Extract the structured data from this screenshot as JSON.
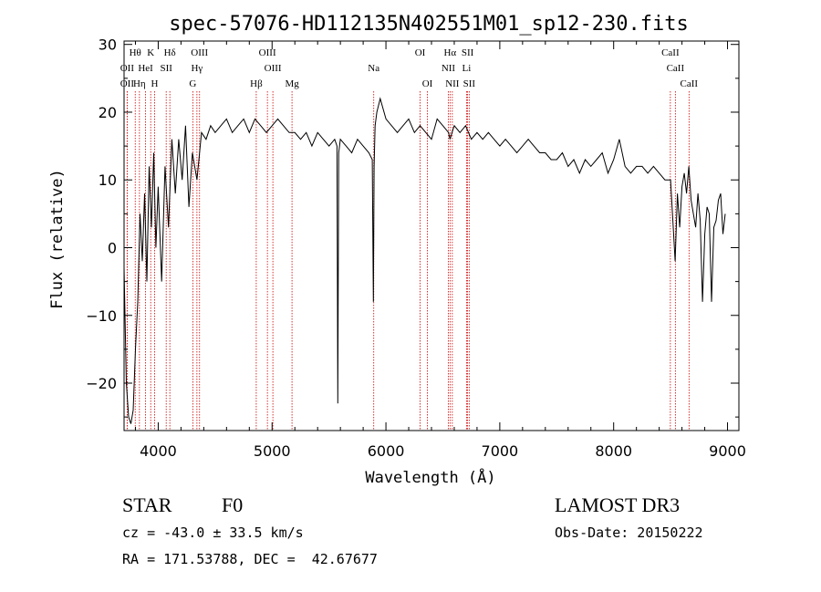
{
  "chart_data": {
    "type": "line",
    "title": "spec-57076-HD112135N402551M01_sp12-230.fits",
    "xlabel": "Wavelength (Å)",
    "ylabel": "Flux (relative)",
    "xlim": [
      3700,
      9100
    ],
    "ylim": [
      -27,
      30.5
    ],
    "xticks": [
      4000,
      5000,
      6000,
      7000,
      8000,
      9000
    ],
    "yticks": [
      -20,
      -10,
      0,
      10,
      20,
      30
    ],
    "series": [
      {
        "x": [
          3700,
          3720,
          3740,
          3760,
          3780,
          3800,
          3820,
          3840,
          3860,
          3880,
          3900,
          3920,
          3940,
          3960,
          3980,
          4000,
          4030,
          4060,
          4090,
          4120,
          4150,
          4180,
          4210,
          4240,
          4270,
          4300,
          4340,
          4380,
          4420,
          4460,
          4500,
          4550,
          4600,
          4650,
          4700,
          4750,
          4800,
          4850,
          4900,
          4950,
          5000,
          5050,
          5100,
          5150,
          5200,
          5250,
          5300,
          5350,
          5400,
          5450,
          5500,
          5550,
          5570,
          5577,
          5585,
          5600,
          5650,
          5700,
          5750,
          5800,
          5850,
          5880,
          5890,
          5896,
          5905,
          5920,
          5950,
          6000,
          6050,
          6100,
          6150,
          6200,
          6250,
          6300,
          6350,
          6400,
          6450,
          6500,
          6550,
          6563,
          6580,
          6600,
          6650,
          6700,
          6750,
          6800,
          6850,
          6900,
          6950,
          7000,
          7050,
          7100,
          7150,
          7200,
          7250,
          7300,
          7350,
          7400,
          7450,
          7500,
          7550,
          7600,
          7650,
          7700,
          7750,
          7800,
          7850,
          7900,
          7950,
          8000,
          8050,
          8100,
          8150,
          8200,
          8250,
          8300,
          8350,
          8400,
          8450,
          8500,
          8520,
          8540,
          8560,
          8580,
          8600,
          8620,
          8640,
          8660,
          8680,
          8700,
          8720,
          8740,
          8760,
          8780,
          8800,
          8820,
          8840,
          8860,
          8880,
          8900,
          8920,
          8940,
          8960,
          8980
        ],
        "y": [
          -3,
          -20,
          -25,
          -26,
          -24,
          -15,
          -8,
          5,
          -2,
          8,
          -5,
          12,
          3,
          14,
          0,
          9,
          -5,
          12,
          3,
          16,
          8,
          16,
          10,
          18,
          6,
          14,
          10,
          17,
          16,
          18,
          17,
          18,
          19,
          17,
          18,
          19,
          17,
          19,
          18,
          17,
          18,
          19,
          18,
          17,
          17,
          16,
          17,
          15,
          17,
          16,
          15,
          16,
          15,
          -23,
          14,
          16,
          15,
          14,
          16,
          15,
          14,
          13,
          -8,
          12,
          18,
          20,
          22,
          19,
          18,
          17,
          18,
          19,
          17,
          18,
          17,
          16,
          19,
          18,
          17,
          16,
          17,
          18,
          17,
          18,
          16,
          17,
          16,
          17,
          16,
          15,
          16,
          15,
          14,
          15,
          16,
          15,
          14,
          14,
          13,
          13,
          14,
          12,
          13,
          11,
          13,
          12,
          13,
          14,
          11,
          13,
          16,
          12,
          11,
          12,
          12,
          11,
          12,
          11,
          10,
          10,
          4,
          -2,
          8,
          3,
          9,
          11,
          8,
          12,
          7,
          5,
          3,
          8,
          4,
          -8,
          2,
          6,
          5,
          -8,
          3,
          4,
          7,
          8,
          2,
          5
        ]
      }
    ],
    "lines": [
      {
        "label": "Hθ",
        "wl": 3798,
        "row": 0
      },
      {
        "label": "K",
        "wl": 3934,
        "row": 0
      },
      {
        "label": "Hδ",
        "wl": 4102,
        "row": 0
      },
      {
        "label": "OIII",
        "wl": 4363,
        "row": 0
      },
      {
        "label": "OIII",
        "wl": 4959,
        "row": 0
      },
      {
        "label": "OI",
        "wl": 6300,
        "row": 0
      },
      {
        "label": "Hα",
        "wl": 6563,
        "row": 0
      },
      {
        "label": "SII",
        "wl": 6717,
        "row": 0
      },
      {
        "label": "CaII",
        "wl": 8498,
        "row": 0
      },
      {
        "label": "OII",
        "wl": 3727,
        "row": 1
      },
      {
        "label": "HeI",
        "wl": 3889,
        "row": 1
      },
      {
        "label": "SII",
        "wl": 4070,
        "row": 1
      },
      {
        "label": "Hγ",
        "wl": 4340,
        "row": 1
      },
      {
        "label": "OIII",
        "wl": 5007,
        "row": 1
      },
      {
        "label": "Na",
        "wl": 5893,
        "row": 1
      },
      {
        "label": "NII",
        "wl": 6548,
        "row": 1
      },
      {
        "label": "Li",
        "wl": 6708,
        "row": 1
      },
      {
        "label": "CaII",
        "wl": 8542,
        "row": 1
      },
      {
        "label": "OII",
        "wl": 3727,
        "row": 2
      },
      {
        "label": "Hη",
        "wl": 3835,
        "row": 2
      },
      {
        "label": "H",
        "wl": 3968,
        "row": 2
      },
      {
        "label": "G",
        "wl": 4304,
        "row": 2
      },
      {
        "label": "Hβ",
        "wl": 4861,
        "row": 2
      },
      {
        "label": "Mg",
        "wl": 5175,
        "row": 2
      },
      {
        "label": "OI",
        "wl": 6364,
        "row": 2
      },
      {
        "label": "NII",
        "wl": 6583,
        "row": 2
      },
      {
        "label": "SII",
        "wl": 6731,
        "row": 2
      },
      {
        "label": "CaII",
        "wl": 8662,
        "row": 2
      }
    ]
  },
  "info": {
    "class": "STAR",
    "subclass": "F0",
    "survey": "LAMOST DR3",
    "cz": "cz = -43.0 ± 33.5 km/s",
    "obsdate": "Obs-Date: 20150222",
    "radec": "RA = 171.53788, DEC =  42.67677"
  },
  "colors": {
    "line_marker": "#cc0000",
    "spectrum": "#000000"
  }
}
